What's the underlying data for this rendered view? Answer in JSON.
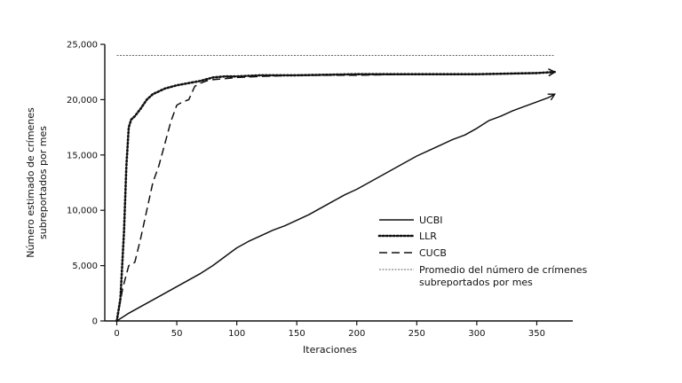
{
  "chart_data": {
    "type": "line",
    "title": "",
    "xlabel": "Iteraciones",
    "ylabel_lines": [
      "Número estimado de crímenes",
      "subreportados por mes"
    ],
    "xlim": [
      -10,
      380
    ],
    "ylim": [
      0,
      25000
    ],
    "xticks": [
      0,
      50,
      100,
      150,
      200,
      250,
      300,
      350
    ],
    "yticks": [
      0,
      5000,
      10000,
      15000,
      20000,
      25000
    ],
    "xtick_labels": [
      "0",
      "50",
      "100",
      "150",
      "200",
      "250",
      "300",
      "350"
    ],
    "ytick_labels": [
      "0",
      "5,000",
      "10,000",
      "15,000",
      "20,000",
      "25,000"
    ],
    "reference_line": {
      "value": 24000,
      "x_range": [
        0,
        365
      ],
      "label_lines": [
        "Promedio del número de crímenes",
        "subreportados por mes"
      ],
      "style": "dotted-thin"
    },
    "series": [
      {
        "name": "UCBI",
        "style": "solid",
        "x": [
          0,
          10,
          20,
          30,
          40,
          50,
          60,
          70,
          80,
          90,
          100,
          110,
          120,
          130,
          140,
          150,
          160,
          170,
          180,
          190,
          200,
          210,
          220,
          230,
          240,
          250,
          260,
          270,
          280,
          290,
          300,
          310,
          320,
          330,
          340,
          350,
          360,
          365
        ],
        "y": [
          0,
          700,
          1300,
          1900,
          2500,
          3100,
          3700,
          4300,
          5000,
          5800,
          6600,
          7200,
          7700,
          8200,
          8600,
          9100,
          9600,
          10200,
          10800,
          11400,
          11900,
          12500,
          13100,
          13700,
          14300,
          14900,
          15400,
          15900,
          16400,
          16800,
          17400,
          18100,
          18500,
          19000,
          19400,
          19800,
          20200,
          20500
        ]
      },
      {
        "name": "LLR",
        "style": "dotted",
        "x": [
          0,
          3,
          6,
          8,
          10,
          12,
          15,
          20,
          25,
          30,
          40,
          50,
          60,
          70,
          80,
          90,
          100,
          120,
          150,
          200,
          250,
          300,
          350,
          365
        ],
        "y": [
          0,
          2000,
          8000,
          14000,
          17500,
          18200,
          18500,
          19200,
          20000,
          20500,
          21000,
          21300,
          21500,
          21700,
          22000,
          22100,
          22100,
          22200,
          22200,
          22300,
          22300,
          22300,
          22400,
          22500
        ]
      },
      {
        "name": "CUCB",
        "style": "dashed",
        "x": [
          0,
          5,
          10,
          15,
          20,
          25,
          30,
          35,
          40,
          45,
          50,
          55,
          60,
          65,
          70,
          75,
          80,
          90,
          100,
          120,
          150,
          200,
          250,
          300,
          350,
          365
        ],
        "y": [
          0,
          3000,
          5000,
          5300,
          7500,
          10000,
          12500,
          14000,
          16000,
          18000,
          19500,
          19800,
          20000,
          21200,
          21500,
          21700,
          21800,
          21900,
          22000,
          22100,
          22200,
          22200,
          22300,
          22300,
          22400,
          22500
        ]
      }
    ],
    "legend": {
      "placement": "center-right",
      "entries": [
        "UCBI",
        "LLR",
        "CUCB"
      ]
    },
    "grid": false
  }
}
